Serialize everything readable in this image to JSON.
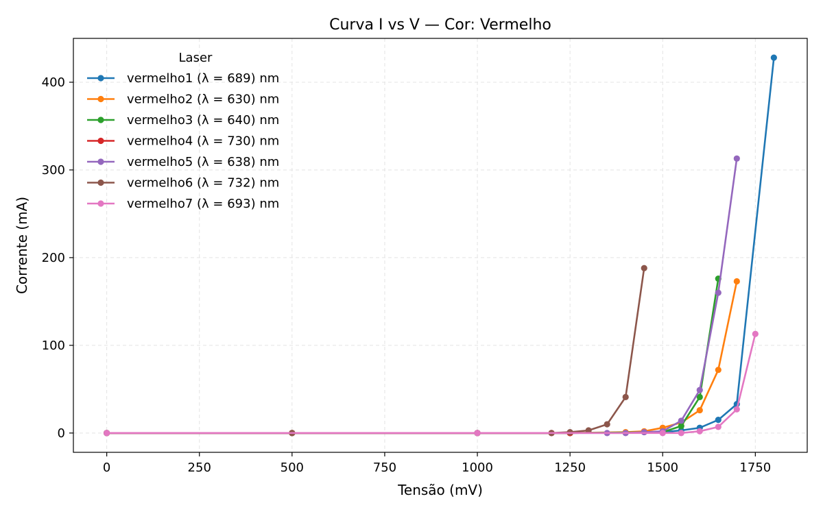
{
  "chart_data": {
    "type": "line",
    "title": "Curva I vs V — Cor: Vermelho",
    "xlabel": "Tensão (mV)",
    "ylabel": "Corrente (mA)",
    "xlim": [
      -90,
      1890
    ],
    "ylim": [
      -22,
      450
    ],
    "xticks": [
      0,
      250,
      500,
      750,
      1000,
      1250,
      1500,
      1750
    ],
    "yticks": [
      0,
      100,
      200,
      300,
      400
    ],
    "grid": true,
    "legend": {
      "title": "Laser",
      "position": "top-left"
    },
    "series": [
      {
        "name": "vermelho1 (λ = 689) nm",
        "color": "#1f77b4",
        "x": [
          0,
          500,
          1000,
          1250,
          1500,
          1550,
          1600,
          1650,
          1700,
          1800
        ],
        "y": [
          0,
          0,
          0,
          0,
          1,
          3,
          6,
          15,
          33,
          428
        ]
      },
      {
        "name": "vermelho2 (λ = 630) nm",
        "color": "#ff7f0e",
        "x": [
          0,
          500,
          1000,
          1250,
          1400,
          1450,
          1500,
          1550,
          1600,
          1650,
          1700
        ],
        "y": [
          0,
          0,
          0,
          0,
          1,
          2,
          6,
          12,
          26,
          72,
          173
        ]
      },
      {
        "name": "vermelho3 (λ = 640) nm",
        "color": "#2ca02c",
        "x": [
          0,
          500,
          1000,
          1250,
          1500,
          1550,
          1600,
          1650
        ],
        "y": [
          0,
          0,
          0,
          0,
          1,
          8,
          41,
          176
        ]
      },
      {
        "name": "vermelho4 (λ = 730) nm",
        "color": "#d62728",
        "x": [
          0,
          500,
          1000,
          1200,
          1250
        ],
        "y": [
          0,
          0,
          0,
          0,
          0
        ]
      },
      {
        "name": "vermelho5 (λ = 638) nm",
        "color": "#9467bd",
        "x": [
          0,
          1000,
          1350,
          1400,
          1450,
          1500,
          1550,
          1600,
          1650,
          1700
        ],
        "y": [
          0,
          0,
          0,
          0,
          1,
          2,
          14,
          49,
          160,
          313
        ]
      },
      {
        "name": "vermelho6 (λ = 732) nm",
        "color": "#8c564b",
        "x": [
          0,
          500,
          1000,
          1200,
          1250,
          1300,
          1350,
          1400,
          1450
        ],
        "y": [
          0,
          0,
          0,
          0,
          1,
          3,
          10,
          41,
          188
        ]
      },
      {
        "name": "vermelho7 (λ = 693) nm",
        "color": "#e377c2",
        "x": [
          0,
          1000,
          1500,
          1550,
          1600,
          1650,
          1700,
          1750
        ],
        "y": [
          0,
          0,
          0,
          0,
          2,
          7,
          27,
          113
        ]
      }
    ]
  }
}
